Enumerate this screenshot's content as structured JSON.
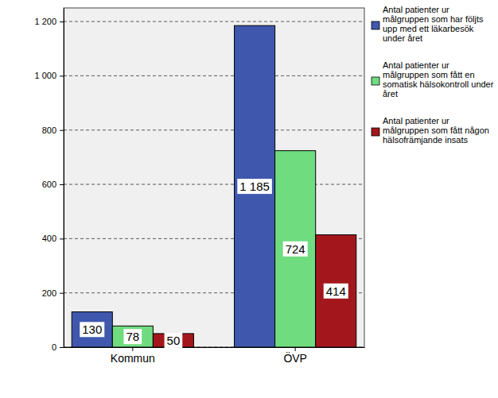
{
  "chart_data": {
    "type": "bar",
    "categories": [
      "Kommun",
      "ÖVP"
    ],
    "series": [
      {
        "name": "Antal patienter ur målgruppen som har följts upp med ett läkarbesök under året",
        "color": "#3f58ad",
        "values": [
          130,
          1185
        ],
        "value_labels": [
          "130",
          "1 185"
        ]
      },
      {
        "name": "Antal patienter ur målgruppen som  fått en somatisk hälsokontroll under året",
        "color": "#70dc80",
        "values": [
          78,
          724
        ]
      },
      {
        "name": "Antal patienter ur målgruppen som fått någon hälsofrämjande insats",
        "color": "#a3171c",
        "values": [
          50,
          414
        ]
      }
    ],
    "ylim": [
      0,
      1250
    ],
    "yticks": [
      0,
      200,
      400,
      600,
      800,
      {
        "value": 1000,
        "label": "1 000"
      },
      {
        "value": 1200,
        "label": "1 200"
      }
    ],
    "grid": true,
    "legend": "right",
    "data_labels": true
  }
}
